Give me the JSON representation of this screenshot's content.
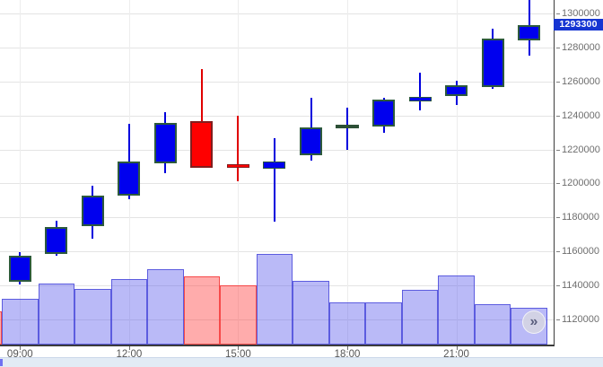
{
  "chart_data": {
    "type": "candlestick",
    "interval": "1h",
    "grid": true,
    "legend": "none",
    "price_axis": {
      "side": "right",
      "tick_step": 20000,
      "visible_price_range": [
        1105200,
        1307900
      ],
      "ticks": [
        1300000,
        1280000,
        1260000,
        1240000,
        1220000,
        1200000,
        1180000,
        1160000,
        1140000,
        1120000
      ],
      "tick_labels": [
        "1300000",
        "1280000",
        "1260000",
        "1240000",
        "1220000",
        "1200000",
        "1180000",
        "1160000",
        "1140000",
        "1120000"
      ]
    },
    "time_axis": {
      "ticks": [
        {
          "label": "09:00",
          "candle_index": 0
        },
        {
          "label": "12:00",
          "candle_index": 3
        },
        {
          "label": "15:00",
          "candle_index": 6
        },
        {
          "label": "18:00",
          "candle_index": 9
        },
        {
          "label": "21:00",
          "candle_index": 12
        }
      ]
    },
    "last_price": 1293300,
    "last_price_label": "1293300",
    "volume_unit": "relative units (rendered pixel height)",
    "candles": [
      {
        "time": "09:00",
        "open": 1142000,
        "high": 1159700,
        "low": 1140400,
        "close": 1157400,
        "volume": 51,
        "dir": "up"
      },
      {
        "time": "10:00",
        "open": 1158700,
        "high": 1178200,
        "low": 1157400,
        "close": 1174500,
        "volume": 68,
        "dir": "up"
      },
      {
        "time": "11:00",
        "open": 1174700,
        "high": 1198500,
        "low": 1167600,
        "close": 1192700,
        "volume": 62,
        "dir": "up"
      },
      {
        "time": "12:00",
        "open": 1192700,
        "high": 1234900,
        "low": 1190500,
        "close": 1212900,
        "volume": 73,
        "dir": "up"
      },
      {
        "time": "13:00",
        "open": 1212000,
        "high": 1241800,
        "low": 1205900,
        "close": 1235400,
        "volume": 84,
        "dir": "up"
      },
      {
        "time": "14:00",
        "open": 1236600,
        "high": 1267100,
        "low": 1209300,
        "close": 1209300,
        "volume": 76,
        "dir": "down"
      },
      {
        "time": "15:00",
        "open": 1211500,
        "high": 1239800,
        "low": 1201400,
        "close": 1209300,
        "volume": 66,
        "dir": "down"
      },
      {
        "time": "16:00",
        "open": 1208800,
        "high": 1226600,
        "low": 1177700,
        "close": 1212900,
        "volume": 101,
        "dir": "up"
      },
      {
        "time": "17:00",
        "open": 1216400,
        "high": 1250200,
        "low": 1213300,
        "close": 1233100,
        "volume": 71,
        "dir": "up"
      },
      {
        "time": "18:00",
        "open": 1233300,
        "high": 1244600,
        "low": 1219900,
        "close": 1233300,
        "volume": 47,
        "dir": "doji"
      },
      {
        "time": "19:00",
        "open": 1233600,
        "high": 1250400,
        "low": 1229600,
        "close": 1249300,
        "volume": 47,
        "dir": "up"
      },
      {
        "time": "20:00",
        "open": 1248400,
        "high": 1265200,
        "low": 1243100,
        "close": 1251000,
        "volume": 61,
        "dir": "up"
      },
      {
        "time": "21:00",
        "open": 1251600,
        "high": 1260400,
        "low": 1246000,
        "close": 1257800,
        "volume": 77,
        "dir": "up"
      },
      {
        "time": "22:00",
        "open": 1256900,
        "high": 1290900,
        "low": 1255500,
        "close": 1285100,
        "volume": 45,
        "dir": "up"
      },
      {
        "time": "23:00",
        "open": 1284200,
        "high": 1307900,
        "low": 1275300,
        "close": 1293300,
        "volume": 41,
        "dir": "up"
      }
    ],
    "partial_left_bar": {
      "time": "08:00",
      "volume": 37,
      "dir": "down"
    },
    "colors": {
      "up_fill": "#0000ee",
      "up_border": "#2d5a3d",
      "up_wick": "#0000dd",
      "down_fill": "#fe0000",
      "down_border": "#821d1d",
      "down_wick": "#e00000",
      "doji_line": "#2d5036",
      "vol_up_fill": "rgba(90,90,235,0.42)",
      "vol_up_border": "rgba(60,60,215,0.75)",
      "vol_down_fill": "rgba(255,70,70,0.45)",
      "vol_down_border": "rgba(245,55,55,0.85)",
      "badge_bg": "#1635d2",
      "badge_text": "#ffffff"
    }
  },
  "expand_button": {
    "icon": "»"
  }
}
